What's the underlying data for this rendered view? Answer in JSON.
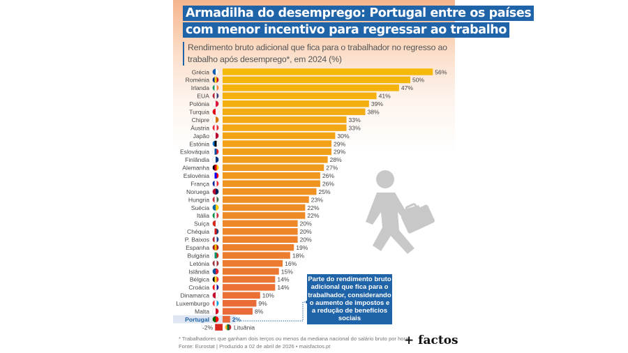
{
  "header": {
    "title_line1": "Armadilha do desemprego: Portugal entre os países",
    "title_line2": "com menor incentivo para regressar ao trabalho",
    "subtitle": "Rendimento bruto adicional que fica para o trabalhador no regresso ao trabalho após desemprego*, em 2024 (%)"
  },
  "annotation": "Parte do rendimento bruto adicional que fica para o trabalhador, considerando o aumento de impostos e a redução de benefícios sociais",
  "footer": {
    "note": "* Trabalhadores que ganham dois terços ou menos da mediana nacional do salário bruto por hora",
    "source": "Fonte: Eurostat | Produzido a 02 de abril de 2026 • maisfactos.pt"
  },
  "logo": "+ factos",
  "colors": {
    "bar_top": "#f5b90a",
    "bar_bottom": "#e9683a",
    "highlight": "#1f63a8",
    "negative": "#d82a20",
    "highlight_row": "#dde6f2"
  },
  "chart_data": {
    "type": "bar",
    "orientation": "horizontal",
    "unit": "%",
    "highlight": "Portugal",
    "categories": [
      "Grécia",
      "Roménia",
      "Irlanda",
      "EUA",
      "Polónia",
      "Turquia",
      "Chipre",
      "Áustria",
      "Japão",
      "Estónia",
      "Eslováquia",
      "Finlândia",
      "Alemanha",
      "Eslovénia",
      "França",
      "Noruega",
      "Hungria",
      "Suécia",
      "Itália",
      "Suíça",
      "Chéquia",
      "P. Baixos",
      "Espanha",
      "Bulgária",
      "Letónia",
      "Islândia",
      "Bélgica",
      "Croácia",
      "Dinamarca",
      "Luxemburgo",
      "Malta",
      "Portugal",
      "Lituânia"
    ],
    "values": [
      56,
      50,
      47,
      41,
      39,
      38,
      33,
      33,
      30,
      29,
      29,
      28,
      27,
      26,
      26,
      25,
      23,
      22,
      22,
      20,
      20,
      20,
      19,
      18,
      16,
      15,
      14,
      14,
      10,
      9,
      8,
      2,
      -2
    ],
    "flag_colors": [
      [
        "#0d5eaf",
        "#fff"
      ],
      [
        "#002b7f",
        "#fcd116",
        "#ce1126"
      ],
      [
        "#169b62",
        "#fff",
        "#ff883e"
      ],
      [
        "#b22234",
        "#fff",
        "#3c3b6e"
      ],
      [
        "#fff",
        "#dc143c"
      ],
      [
        "#e30a17",
        "#fff"
      ],
      [
        "#fff",
        "#d57800"
      ],
      [
        "#ed2939",
        "#fff",
        "#ed2939"
      ],
      [
        "#fff",
        "#bc002d"
      ],
      [
        "#0072ce",
        "#000",
        "#fff"
      ],
      [
        "#fff",
        "#0b4ea2",
        "#ee1c25"
      ],
      [
        "#fff",
        "#003580"
      ],
      [
        "#000",
        "#dd0000",
        "#ffce00"
      ],
      [
        "#fff",
        "#0000ff",
        "#ff0000"
      ],
      [
        "#002395",
        "#fff",
        "#ed2939"
      ],
      [
        "#ba0c2f",
        "#00205b"
      ],
      [
        "#ce2939",
        "#fff",
        "#477050"
      ],
      [
        "#006aa7",
        "#fecc00"
      ],
      [
        "#009246",
        "#fff",
        "#ce2b37"
      ],
      [
        "#d52b1e",
        "#fff"
      ],
      [
        "#fff",
        "#d7141a",
        "#11457e"
      ],
      [
        "#ae1c28",
        "#fff",
        "#21468b"
      ],
      [
        "#aa151b",
        "#f1bf00",
        "#aa151b"
      ],
      [
        "#fff",
        "#00966e",
        "#d62612"
      ],
      [
        "#9e3039",
        "#fff",
        "#9e3039"
      ],
      [
        "#02529c",
        "#dc1e35"
      ],
      [
        "#000",
        "#fdda24",
        "#ef3340"
      ],
      [
        "#ff0000",
        "#fff",
        "#171796"
      ],
      [
        "#c8102e",
        "#fff"
      ],
      [
        "#ef3340",
        "#fff",
        "#00a3e0"
      ],
      [
        "#fff",
        "#cf142b"
      ],
      [
        "#006600",
        "#ff0000"
      ],
      [
        "#fdb913",
        "#006a44",
        "#c1272d"
      ]
    ]
  }
}
